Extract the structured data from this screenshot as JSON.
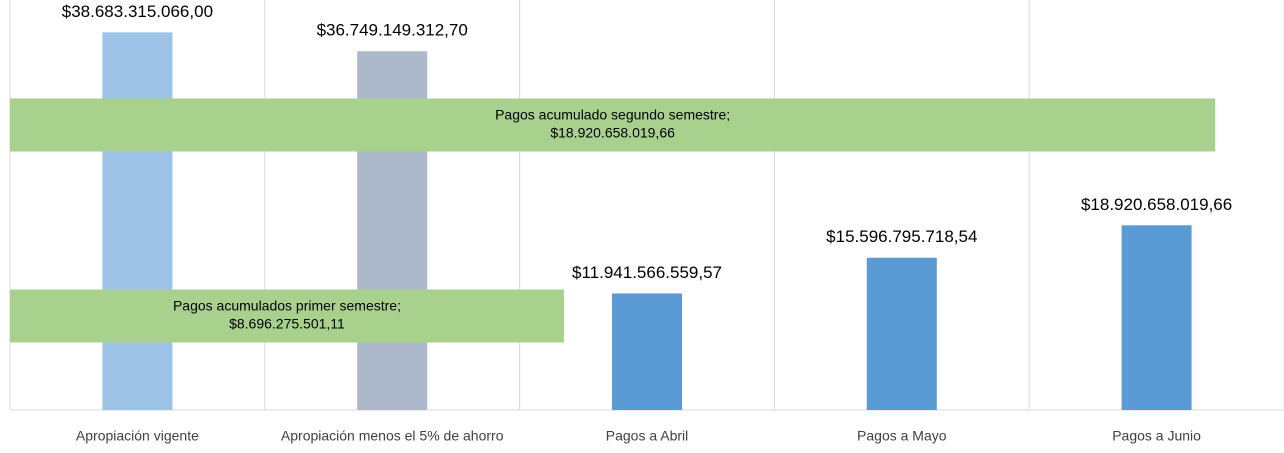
{
  "chart_data": {
    "type": "bar",
    "categories": [
      "Apropiación vigente",
      "Apropiación menos el 5% de ahorro",
      "Pagos a Abril",
      "Pagos a Mayo",
      "Pagos a Junio"
    ],
    "values": [
      38683315066.0,
      36749149312.7,
      11941566559.57,
      15596795718.54,
      18920658019.66
    ],
    "value_labels": [
      "$38.683.315.066,00",
      "$36.749.149.312,70",
      "$11.941.566.559,57",
      "$15.596.795.718,54",
      "$18.920.658.019,66"
    ],
    "colors": [
      "#9dc3e6",
      "#adb9ca",
      "#5b9bd5",
      "#5b9bd5",
      "#5b9bd5"
    ],
    "ylim": [
      0,
      42000000000
    ],
    "horizontal": {
      "type": "barh",
      "color": "#a9d18e",
      "xlim": [
        0,
        20000000000
      ],
      "bars": [
        {
          "label": "Pagos acumulados primer semestre;",
          "value": 8696275501.11,
          "value_label": "$8.696.275.501,11"
        },
        {
          "label": "Pagos acumulado segundo semestre;",
          "value": 18920658019.66,
          "value_label": "$18.920.658.019,66"
        }
      ]
    }
  }
}
